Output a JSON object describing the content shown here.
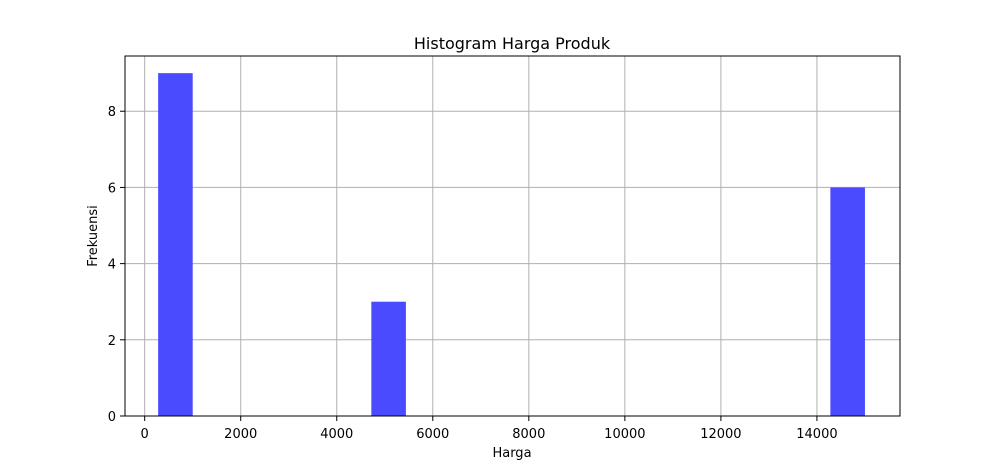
{
  "chart_data": {
    "type": "bar",
    "title": "Histogram Harga Produk",
    "xlabel": "Harga",
    "ylabel": "Frekuensi",
    "xlim": [
      -410,
      15730
    ],
    "ylim": [
      0,
      9.45
    ],
    "x_ticks": [
      0,
      2000,
      4000,
      6000,
      8000,
      10000,
      12000,
      14000
    ],
    "x_tick_labels": [
      "0",
      "2000",
      "4000",
      "6000",
      "8000",
      "10000",
      "12000",
      "14000"
    ],
    "y_ticks": [
      0,
      2,
      4,
      6,
      8
    ],
    "y_tick_labels": [
      "0",
      "2",
      "4",
      "6",
      "8"
    ],
    "grid": true,
    "bar_color": "#4a4aff",
    "bins": [
      {
        "x0": 280,
        "x1": 1000,
        "value": 9
      },
      {
        "x0": 4720,
        "x1": 5440,
        "value": 3
      },
      {
        "x0": 14280,
        "x1": 15000,
        "value": 6
      }
    ]
  }
}
